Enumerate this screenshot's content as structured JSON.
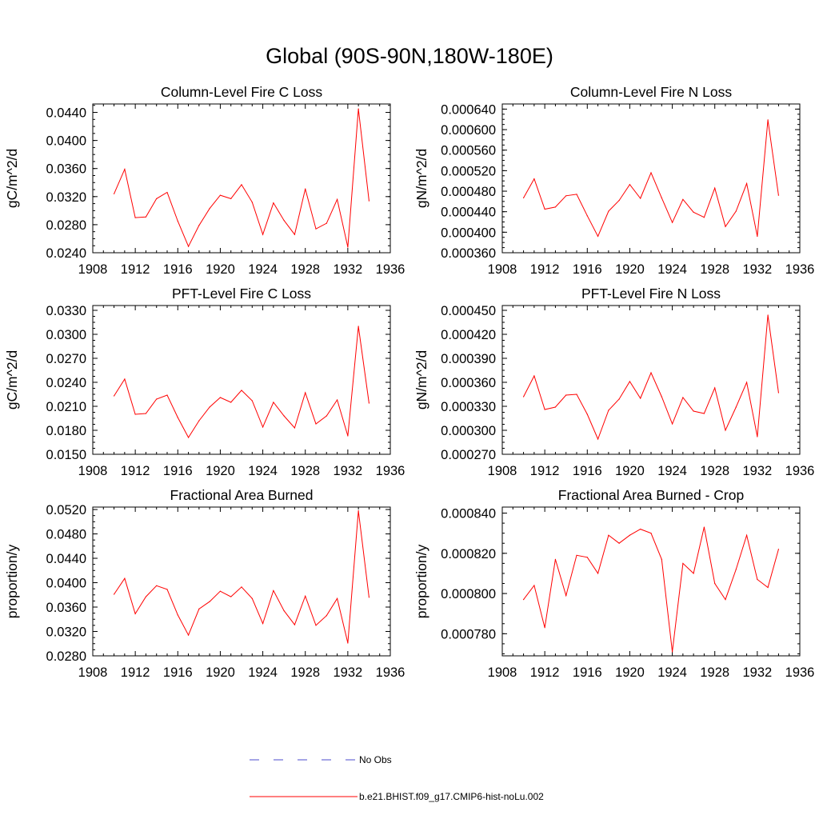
{
  "figure_title": "Global (90S-90N,180W-180E)",
  "legend": [
    {
      "label": "No Obs",
      "color": "#4b4bcc",
      "style": "dashed"
    },
    {
      "label": "b.e21.BHIST.f09_g17.CMIP6-hist-noLu.002",
      "color": "#ff0000",
      "style": "solid"
    }
  ],
  "chart_data": [
    {
      "type": "line",
      "title": "Column-Level Fire C Loss",
      "ylabel": "gC/m^2/d",
      "xlim": [
        1908,
        1936
      ],
      "ylim": [
        0.024,
        0.0452
      ],
      "xticks": [
        "1908",
        "1912",
        "1916",
        "1920",
        "1924",
        "1928",
        "1932",
        "1936"
      ],
      "yticks": [
        "0.0240",
        "0.0280",
        "0.0320",
        "0.0360",
        "0.0400",
        "0.0440"
      ],
      "x": [
        1910,
        1911,
        1912,
        1913,
        1914,
        1915,
        1916,
        1917,
        1918,
        1919,
        1920,
        1921,
        1922,
        1923,
        1924,
        1925,
        1926,
        1927,
        1928,
        1929,
        1930,
        1931,
        1932,
        1933,
        1934
      ],
      "series": [
        {
          "color": "#ff0000",
          "values": [
            0.0324,
            0.0359,
            0.029,
            0.0291,
            0.0317,
            0.0326,
            0.0285,
            0.0249,
            0.0279,
            0.0303,
            0.0322,
            0.0317,
            0.0337,
            0.0312,
            0.0266,
            0.0311,
            0.0286,
            0.0266,
            0.0331,
            0.0274,
            0.0282,
            0.0316,
            0.0248,
            0.0445,
            0.0314
          ]
        }
      ]
    },
    {
      "type": "line",
      "title": "Column-Level Fire N Loss",
      "ylabel": "gN/m^2/d",
      "xlim": [
        1908,
        1936
      ],
      "ylim": [
        0.00036,
        0.00065
      ],
      "xticks": [
        "1908",
        "1912",
        "1916",
        "1920",
        "1924",
        "1928",
        "1932",
        "1936"
      ],
      "yticks": [
        "0.000360",
        "0.000400",
        "0.000440",
        "0.000480",
        "0.000520",
        "0.000560",
        "0.000600",
        "0.000640"
      ],
      "x": [
        1910,
        1911,
        1912,
        1913,
        1914,
        1915,
        1916,
        1917,
        1918,
        1919,
        1920,
        1921,
        1922,
        1923,
        1924,
        1925,
        1926,
        1927,
        1928,
        1929,
        1930,
        1931,
        1932,
        1933,
        1934
      ],
      "series": [
        {
          "color": "#ff0000",
          "values": [
            0.000467,
            0.000504,
            0.000445,
            0.000449,
            0.000471,
            0.000474,
            0.000432,
            0.000392,
            0.000441,
            0.000462,
            0.000493,
            0.000466,
            0.000516,
            0.000467,
            0.000419,
            0.000464,
            0.000439,
            0.000429,
            0.000486,
            0.000411,
            0.000441,
            0.000495,
            0.000392,
            0.000619,
            0.000472
          ]
        }
      ]
    },
    {
      "type": "line",
      "title": "PFT-Level Fire C Loss",
      "ylabel": "gC/m^2/d",
      "xlim": [
        1908,
        1936
      ],
      "ylim": [
        0.015,
        0.0336
      ],
      "xticks": [
        "1908",
        "1912",
        "1916",
        "1920",
        "1924",
        "1928",
        "1932",
        "1936"
      ],
      "yticks": [
        "0.0150",
        "0.0180",
        "0.0210",
        "0.0240",
        "0.0270",
        "0.0300",
        "0.0330"
      ],
      "x": [
        1910,
        1911,
        1912,
        1913,
        1914,
        1915,
        1916,
        1917,
        1918,
        1919,
        1920,
        1921,
        1922,
        1923,
        1924,
        1925,
        1926,
        1927,
        1928,
        1929,
        1930,
        1931,
        1932,
        1933,
        1934
      ],
      "series": [
        {
          "color": "#ff0000",
          "values": [
            0.0223,
            0.0244,
            0.02,
            0.0201,
            0.0219,
            0.0224,
            0.0196,
            0.0171,
            0.0192,
            0.0209,
            0.0221,
            0.0215,
            0.023,
            0.0217,
            0.0184,
            0.0215,
            0.0198,
            0.0183,
            0.0227,
            0.0188,
            0.0198,
            0.0218,
            0.0173,
            0.031,
            0.0214
          ]
        }
      ]
    },
    {
      "type": "line",
      "title": "PFT-Level Fire N Loss",
      "ylabel": "gN/m^2/d",
      "xlim": [
        1908,
        1936
      ],
      "ylim": [
        0.00027,
        0.000456
      ],
      "xticks": [
        "1908",
        "1912",
        "1916",
        "1920",
        "1924",
        "1928",
        "1932",
        "1936"
      ],
      "yticks": [
        "0.000270",
        "0.000300",
        "0.000330",
        "0.000360",
        "0.000390",
        "0.000420",
        "0.000450"
      ],
      "x": [
        1910,
        1911,
        1912,
        1913,
        1914,
        1915,
        1916,
        1917,
        1918,
        1919,
        1920,
        1921,
        1922,
        1923,
        1924,
        1925,
        1926,
        1927,
        1928,
        1929,
        1930,
        1931,
        1932,
        1933,
        1934
      ],
      "series": [
        {
          "color": "#ff0000",
          "values": [
            0.000342,
            0.000368,
            0.000326,
            0.000329,
            0.000344,
            0.000345,
            0.00032,
            0.000289,
            0.000325,
            0.000339,
            0.000361,
            0.00034,
            0.000372,
            0.000342,
            0.000308,
            0.000341,
            0.000324,
            0.000321,
            0.000353,
            0.0003,
            0.000329,
            0.00036,
            0.000292,
            0.000444,
            0.000347
          ]
        }
      ]
    },
    {
      "type": "line",
      "title": "Fractional Area Burned",
      "ylabel": "proportion/y",
      "xlim": [
        1908,
        1936
      ],
      "ylim": [
        0.028,
        0.0524
      ],
      "xticks": [
        "1908",
        "1912",
        "1916",
        "1920",
        "1924",
        "1928",
        "1932",
        "1936"
      ],
      "yticks": [
        "0.0280",
        "0.0320",
        "0.0360",
        "0.0400",
        "0.0440",
        "0.0480",
        "0.0520"
      ],
      "x": [
        1910,
        1911,
        1912,
        1913,
        1914,
        1915,
        1916,
        1917,
        1918,
        1919,
        1920,
        1921,
        1922,
        1923,
        1924,
        1925,
        1926,
        1927,
        1928,
        1929,
        1930,
        1931,
        1932,
        1933,
        1934
      ],
      "series": [
        {
          "color": "#ff0000",
          "values": [
            0.0381,
            0.0407,
            0.0349,
            0.0377,
            0.0395,
            0.0389,
            0.0347,
            0.0314,
            0.0357,
            0.0369,
            0.0386,
            0.0377,
            0.0393,
            0.0374,
            0.0333,
            0.0387,
            0.0354,
            0.0331,
            0.0378,
            0.033,
            0.0346,
            0.0374,
            0.0301,
            0.0518,
            0.0376
          ]
        }
      ]
    },
    {
      "type": "line",
      "title": "Fractional Area Burned - Crop",
      "ylabel": "proportion/y",
      "xlim": [
        1908,
        1936
      ],
      "ylim": [
        0.000769,
        0.000843
      ],
      "xticks": [
        "1908",
        "1912",
        "1916",
        "1920",
        "1924",
        "1928",
        "1932",
        "1936"
      ],
      "yticks": [
        "0.000780",
        "0.000800",
        "0.000820",
        "0.000840"
      ],
      "x": [
        1910,
        1911,
        1912,
        1913,
        1914,
        1915,
        1916,
        1917,
        1918,
        1919,
        1920,
        1921,
        1922,
        1923,
        1924,
        1925,
        1926,
        1927,
        1928,
        1929,
        1930,
        1931,
        1932,
        1933,
        1934
      ],
      "series": [
        {
          "color": "#ff0000",
          "values": [
            0.000797,
            0.000804,
            0.000783,
            0.000817,
            0.000799,
            0.000819,
            0.000818,
            0.00081,
            0.000829,
            0.000825,
            0.000829,
            0.000832,
            0.00083,
            0.000817,
            0.000771,
            0.000815,
            0.00081,
            0.000833,
            0.000805,
            0.000797,
            0.000812,
            0.000829,
            0.000807,
            0.000803,
            0.000822
          ]
        }
      ]
    }
  ]
}
